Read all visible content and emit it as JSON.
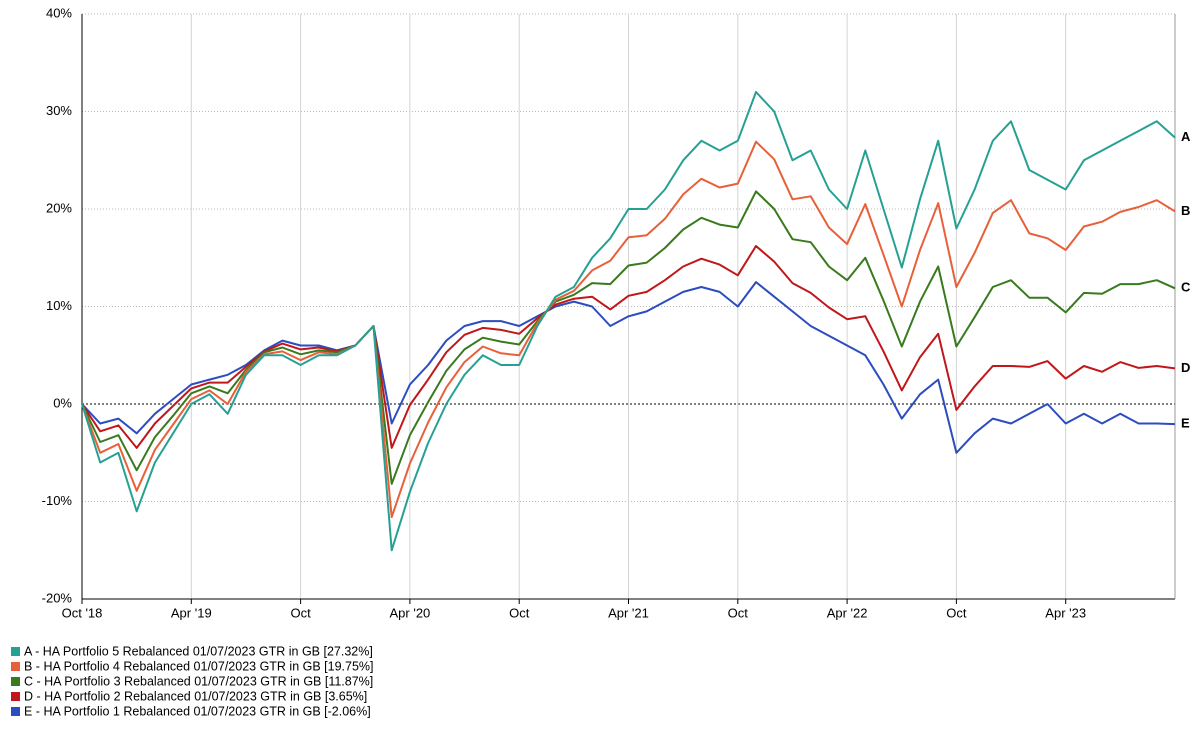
{
  "chart_data": {
    "type": "line",
    "categories": [
      "Oct '18",
      null,
      null,
      null,
      null,
      null,
      "Apr '19",
      null,
      null,
      null,
      null,
      null,
      "Oct",
      null,
      null,
      null,
      null,
      null,
      "Apr '20",
      null,
      null,
      null,
      null,
      null,
      "Oct",
      null,
      null,
      null,
      null,
      null,
      "Apr '21",
      null,
      null,
      null,
      null,
      null,
      "Oct",
      null,
      null,
      null,
      null,
      null,
      "Apr '22",
      null,
      null,
      null,
      null,
      null,
      "Oct",
      null,
      null,
      null,
      null,
      null,
      "Apr '23",
      null,
      null,
      null,
      null,
      null,
      null
    ],
    "ylim": [
      -20,
      40
    ],
    "yticks": [
      {
        "value": -20,
        "label": "-20%"
      },
      {
        "value": -10,
        "label": "-10%"
      },
      {
        "value": 0,
        "label": "0%"
      },
      {
        "value": 10,
        "label": "10%"
      },
      {
        "value": 20,
        "label": "20%"
      },
      {
        "value": 30,
        "label": "30%"
      },
      {
        "value": 40,
        "label": "40%"
      }
    ],
    "grid": true,
    "series": [
      {
        "name": "A - HA Portfolio 5 Rebalanced 01/07/2023 GTR in GB [27.32%]",
        "label": "A",
        "color": "#26a093",
        "values": [
          0,
          -6,
          -5,
          -11,
          -6,
          -3,
          0,
          1,
          -1,
          3,
          5,
          5,
          4,
          5,
          5,
          6,
          8,
          -15,
          -9,
          -4,
          0,
          3,
          5,
          4,
          4,
          8,
          11,
          12,
          15,
          17,
          20,
          20,
          22,
          25,
          27,
          26,
          27,
          32,
          30,
          25,
          26,
          22,
          20,
          26,
          20,
          14,
          21,
          27,
          18,
          22,
          27,
          29,
          24,
          23,
          22,
          25,
          26,
          27,
          28,
          29,
          27.32
        ]
      },
      {
        "name": "B - HA Portfolio 4 Rebalanced 01/07/2023 GTR in GB [19.75%]",
        "label": "B",
        "color": "#e8603a",
        "values": [
          0,
          -5.0,
          -4.1,
          -8.9,
          -4.7,
          -2.1,
          0.5,
          1.4,
          0.0,
          3.3,
          5.1,
          5.4,
          4.5,
          5.3,
          5.1,
          6,
          8,
          -11.6,
          -6.1,
          -1.9,
          1.7,
          4.3,
          5.9,
          5.2,
          5.0,
          8.3,
          10.7,
          11.6,
          13.7,
          14.7,
          17.1,
          17.3,
          19.0,
          21.5,
          23.1,
          22.2,
          22.6,
          26.9,
          25.1,
          21.0,
          21.3,
          18.1,
          16.4,
          20.5,
          15.3,
          10.0,
          15.8,
          20.6,
          12.0,
          15.5,
          19.6,
          20.9,
          17.5,
          17.0,
          15.8,
          18.2,
          18.7,
          19.7,
          20.2,
          20.9,
          19.75
        ]
      },
      {
        "name": "C - HA Portfolio 3 Rebalanced 01/07/2023 GTR in GB [11.87%]",
        "label": "C",
        "color": "#3a7a1e",
        "values": [
          0,
          -3.9,
          -3.2,
          -6.8,
          -3.4,
          -1.2,
          1.1,
          1.8,
          1.1,
          3.5,
          5.3,
          5.8,
          5.1,
          5.5,
          5.3,
          6,
          8,
          -8.2,
          -3.2,
          0.2,
          3.4,
          5.6,
          6.8,
          6.4,
          6.1,
          8.5,
          10.5,
          11.2,
          12.4,
          12.3,
          14.2,
          14.5,
          16.0,
          17.9,
          19.1,
          18.4,
          18.1,
          21.8,
          20.0,
          16.9,
          16.6,
          14.1,
          12.7,
          15.0,
          10.6,
          5.9,
          10.5,
          14.1,
          5.9,
          8.9,
          12.0,
          12.7,
          10.9,
          10.9,
          9.4,
          11.4,
          11.3,
          12.3,
          12.3,
          12.7,
          11.87
        ]
      },
      {
        "name": "D - HA Portfolio 2 Rebalanced 01/07/2023 GTR in GB [3.65%]",
        "label": "D",
        "color": "#c0171b",
        "values": [
          0,
          -2.8,
          -2.2,
          -4.5,
          -2.0,
          -0.2,
          1.6,
          2.2,
          2.2,
          3.8,
          5.4,
          6.2,
          5.6,
          5.8,
          5.4,
          6,
          8,
          -4.5,
          -0.1,
          2.5,
          5.3,
          7.1,
          7.8,
          7.6,
          7.2,
          8.8,
          10.2,
          10.8,
          11.0,
          9.7,
          11.1,
          11.5,
          12.7,
          14.1,
          14.9,
          14.3,
          13.2,
          16.2,
          14.6,
          12.4,
          11.4,
          9.9,
          8.7,
          9.0,
          5.4,
          1.4,
          4.8,
          7.2,
          -0.6,
          1.8,
          3.9,
          3.9,
          3.8,
          4.4,
          2.6,
          3.9,
          3.3,
          4.3,
          3.7,
          3.9,
          3.65
        ]
      },
      {
        "name": "E - HA Portfolio 1 Rebalanced 01/07/2023 GTR in GB [-2.06%]",
        "label": "E",
        "color": "#2c4cc0",
        "values": [
          0,
          -2,
          -1.5,
          -3,
          -1,
          0.5,
          2,
          2.5,
          3,
          4,
          5.5,
          6.5,
          6,
          6,
          5.5,
          6,
          8,
          -2,
          2,
          4,
          6.5,
          8,
          8.5,
          8.5,
          8,
          9,
          10,
          10.5,
          10,
          8,
          9,
          9.5,
          10.5,
          11.5,
          12,
          11.5,
          10,
          12.5,
          11,
          9.5,
          8,
          7,
          6,
          5,
          2,
          -1.5,
          1,
          2.5,
          -5,
          -3,
          -1.5,
          -2,
          -1,
          0,
          -2,
          -1,
          -2,
          -1,
          -2,
          -2,
          -2.06
        ]
      }
    ]
  }
}
